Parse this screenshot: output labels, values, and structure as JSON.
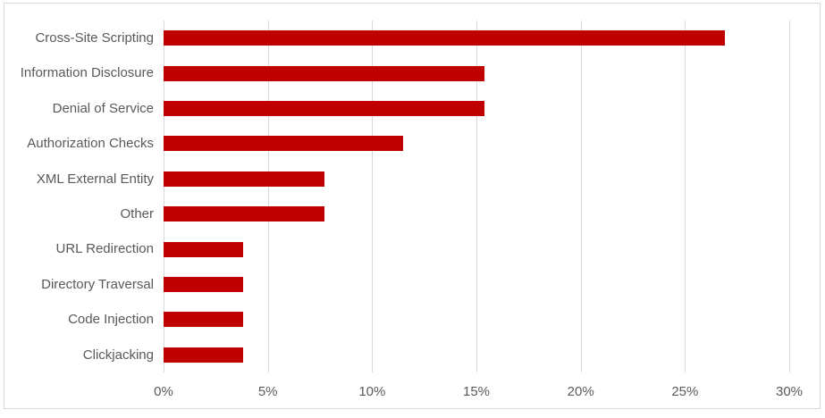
{
  "chart_data": {
    "type": "bar",
    "orientation": "horizontal",
    "title": "",
    "xlabel": "",
    "ylabel": "",
    "categories": [
      "Cross-Site Scripting",
      "Information Disclosure",
      "Denial of Service",
      "Authorization Checks",
      "XML External Entity",
      "Other",
      "URL Redirection",
      "Directory Traversal",
      "Code Injection",
      "Clickjacking"
    ],
    "values": [
      26.9,
      15.4,
      15.4,
      11.5,
      7.7,
      7.7,
      3.8,
      3.8,
      3.8,
      3.8
    ],
    "value_unit": "%",
    "xlim": [
      0,
      30
    ],
    "x_tick_interval": 5,
    "x_tick_labels": [
      "0%",
      "5%",
      "10%",
      "15%",
      "20%",
      "25%",
      "30%"
    ],
    "grid": "vertical",
    "legend": "none",
    "colors": {
      "bar": "#c00000",
      "axis_text": "#595959",
      "gridline": "#d9d9d9",
      "chart_border": "#d9d9d9",
      "background": "#ffffff"
    }
  }
}
